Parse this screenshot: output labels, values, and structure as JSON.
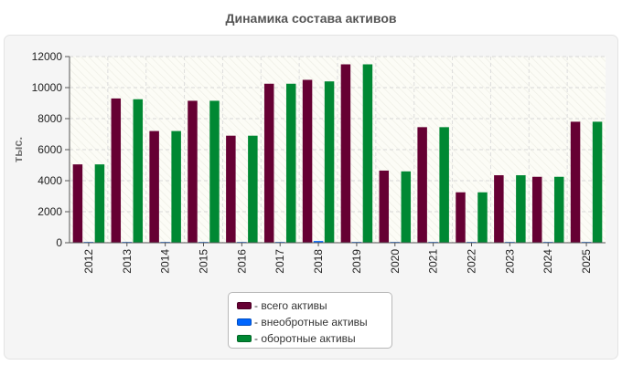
{
  "chart_data": {
    "type": "bar",
    "title": "Динамика состава активов",
    "ylabel": "тыс.",
    "xlabel": "",
    "ylim": [
      0,
      12000
    ],
    "yticks": [
      0,
      2000,
      4000,
      6000,
      8000,
      10000,
      12000
    ],
    "grid": true,
    "legend_position": "bottom",
    "categories": [
      "2012",
      "2013",
      "2014",
      "2015",
      "2016",
      "2017",
      "2018",
      "2019",
      "2020",
      "2021",
      "2022",
      "2023",
      "2024",
      "2025"
    ],
    "series": [
      {
        "name": "- всего активы",
        "color": "#660033",
        "values": [
          5050,
          9300,
          7200,
          9150,
          6900,
          10250,
          10500,
          11500,
          4650,
          7450,
          3250,
          4350,
          4250,
          7800
        ]
      },
      {
        "name": "- внеобротные активы",
        "color": "#0066ff",
        "values": [
          50,
          50,
          50,
          50,
          50,
          50,
          110,
          50,
          50,
          50,
          50,
          50,
          50,
          50
        ]
      },
      {
        "name": "- оборотные активы",
        "color": "#008833",
        "values": [
          5050,
          9250,
          7200,
          9150,
          6900,
          10250,
          10400,
          11500,
          4600,
          7450,
          3250,
          4350,
          4250,
          7800
        ]
      }
    ]
  }
}
